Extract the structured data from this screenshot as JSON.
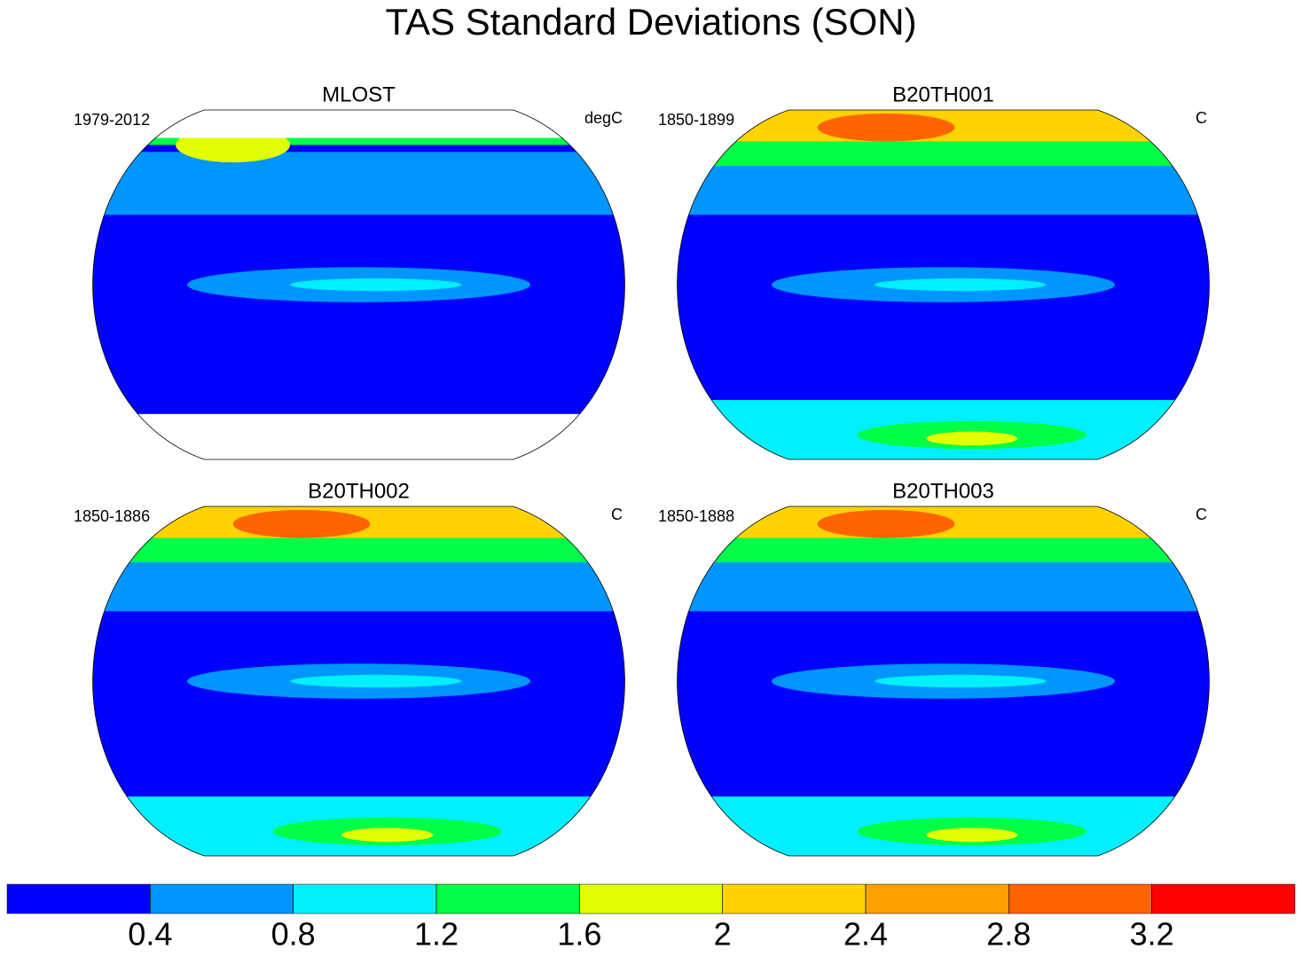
{
  "title": "TAS Standard Deviations (SON)",
  "panels": [
    {
      "title": "MLOST",
      "left": "1979-2012",
      "right": "degC"
    },
    {
      "title": "B20TH001",
      "left": "1850-1899",
      "right": "C"
    },
    {
      "title": "B20TH002",
      "left": "1850-1886",
      "right": "C"
    },
    {
      "title": "B20TH003",
      "left": "1850-1888",
      "right": "C"
    }
  ],
  "colorbar": {
    "levels": [
      0.4,
      0.8,
      1.2,
      1.6,
      2,
      2.4,
      2.8,
      3.2
    ],
    "colors": [
      "#0000ff",
      "#0096ff",
      "#00f0ff",
      "#00ff46",
      "#e1ff00",
      "#ffd200",
      "#ffa000",
      "#ff6400",
      "#ff0000"
    ]
  }
}
